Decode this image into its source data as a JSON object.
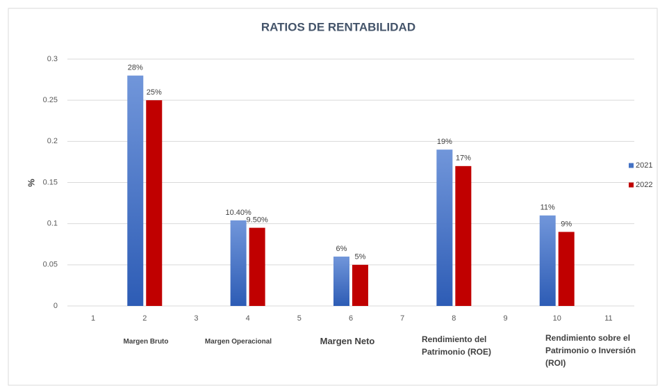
{
  "chart_data": {
    "type": "bar",
    "title": "RATIOS DE RENTABILIDAD",
    "y_label": "%",
    "categories": [
      "1",
      "2",
      "3",
      "4",
      "5",
      "6",
      "7",
      "8",
      "9",
      "10",
      "11"
    ],
    "series": [
      {
        "name": "2021",
        "color": "#4472c4",
        "values": [
          null,
          0.28,
          null,
          0.104,
          null,
          0.06,
          null,
          0.19,
          null,
          0.11,
          null
        ],
        "value_labels": [
          null,
          "28%",
          null,
          "10.40%",
          null,
          "6%",
          null,
          "19%",
          null,
          "11%",
          null
        ]
      },
      {
        "name": "2022",
        "color": "#c00000",
        "values": [
          null,
          0.25,
          null,
          0.095,
          null,
          0.05,
          null,
          0.17,
          null,
          0.09,
          null
        ],
        "value_labels": [
          null,
          "25%",
          null,
          "9.50%",
          null,
          "5%",
          null,
          "17%",
          null,
          "9%",
          null
        ]
      }
    ],
    "ylim": [
      0,
      0.3
    ],
    "yticks": [
      0,
      0.05,
      0.1,
      0.15,
      0.2,
      0.25,
      0.3
    ],
    "grid": true,
    "legend": "right",
    "annotations": [
      "Margen Bruto",
      "Margen Operacional",
      "Margen Neto",
      "Rendimiento del Patrimonio (ROE)",
      "Rendimiento sobre el Patrimonio o Inversión (ROI)"
    ]
  }
}
